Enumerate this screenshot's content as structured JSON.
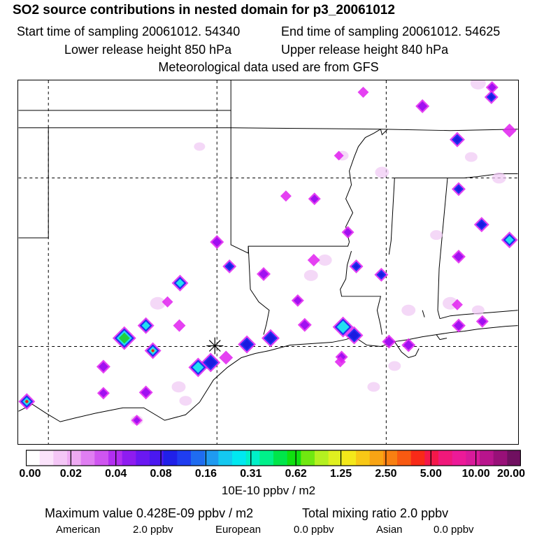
{
  "header": {
    "title": "SO2 source contributions in nested domain for p3_20061012",
    "start_time": "Start time of sampling 20061012. 54340",
    "end_time": "End time of sampling 20061012. 54625",
    "lower_height": "Lower release height  850 hPa",
    "upper_height": "Upper release height  840 hPa",
    "met_data": "Meteorological data used are from GFS"
  },
  "colorbar": {
    "labels": [
      "0.00",
      "0.02",
      "0.04",
      "0.08",
      "0.16",
      "0.31",
      "0.62",
      "1.25",
      "2.50",
      "5.00",
      "10.00",
      "20.00"
    ],
    "colors": [
      "#ffffff",
      "#fbe3fb",
      "#f4c6f6",
      "#eeaaf2",
      "#e07ef2",
      "#cf55f0",
      "#b22ef0",
      "#8e1cf0",
      "#6a18f2",
      "#4a18f0",
      "#2020e8",
      "#1f3df0",
      "#1f6cf0",
      "#1f9af0",
      "#14c8f0",
      "#00e8f0",
      "#00f0c8",
      "#00f08a",
      "#00e64a",
      "#10e010",
      "#70e810",
      "#b4f020",
      "#e0f020",
      "#f4e81a",
      "#f8c816",
      "#f8a414",
      "#f88012",
      "#f85a12",
      "#f82a18",
      "#f4184a",
      "#f0187a",
      "#ec1a98",
      "#d81a9a",
      "#b8148c",
      "#981078",
      "#701060"
    ],
    "units": "10E-10 ppbv / m2"
  },
  "footer": {
    "maximum": "Maximum value  0.428E-09 ppbv / m2",
    "total": "Total mixing ratio       2.0 ppbv",
    "american_label": "American",
    "american_value": "2.0 ppbv",
    "european_label": "European",
    "european_value": "0.0 ppbv",
    "asian_label": "Asian",
    "asian_value": "0.0 ppbv"
  },
  "map": {
    "colors": {
      "magenta": "#e020f0",
      "purple": "#a010f0",
      "blue": "#2030f0",
      "cyan": "#20e0f0",
      "green": "#20d040",
      "yellow": "#f0d010",
      "orange": "#f07010",
      "red": "#e02020"
    }
  }
}
